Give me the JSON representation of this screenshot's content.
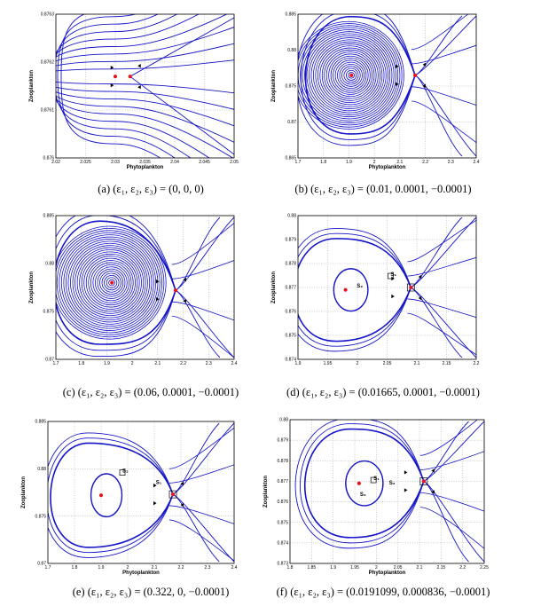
{
  "figure": {
    "panels": [
      {
        "id": "a",
        "caption": "(a) (ε₁, ε₂, ε₃) = (0, 0, 0)",
        "chart_data": {
          "type": "line",
          "title": "",
          "xlabel": "Phytoplankton",
          "ylabel": "Zooplankton",
          "xlim": [
            2.02,
            2.05
          ],
          "ylim": [
            0.876,
            0.8763
          ],
          "xticks": [
            2.02,
            2.025,
            2.03,
            2.035,
            2.04,
            2.045,
            2.05
          ],
          "xtick_labels": [
            "2.02",
            "2.025",
            "2.03",
            "2.035",
            "2.04",
            "2.045",
            "2.05"
          ],
          "yticks": [
            0.876,
            0.8761,
            0.8762,
            0.8763
          ],
          "ytick_labels": [
            "0.876",
            "0.8761",
            "0.8762",
            "0.8763"
          ],
          "grid": true,
          "equilibria": [
            {
              "x": 2.03,
              "y": 0.87617,
              "color": "#e8141d"
            }
          ],
          "saddle": {
            "x": 2.0325,
            "y": 0.87617
          },
          "series_color": "#1414c8",
          "labels": []
        }
      },
      {
        "id": "b",
        "caption": "(b) (ε₁, ε₂, ε₃) = (0.01, 0.0001, −0.0001)",
        "chart_data": {
          "type": "line",
          "title": "",
          "xlabel": "Phytoplankton",
          "ylabel": "Zooplankton",
          "xlim": [
            1.7,
            2.4
          ],
          "ylim": [
            0.865,
            0.885
          ],
          "xticks": [
            1.7,
            1.8,
            1.9,
            2.0,
            2.1,
            2.2,
            2.3,
            2.4
          ],
          "xtick_labels": [
            "1.7",
            "1.8",
            "1.9",
            "2",
            "2.1",
            "2.2",
            "2.3",
            "2.4"
          ],
          "yticks": [
            0.865,
            0.87,
            0.875,
            0.88,
            0.885
          ],
          "ytick_labels": [
            "0.865",
            "0.87",
            "0.875",
            "0.88",
            "0.885"
          ],
          "grid": true,
          "equilibria": [
            {
              "x": 1.91,
              "y": 0.8765,
              "color": "#e8141d"
            }
          ],
          "saddle": {
            "x": 2.16,
            "y": 0.8765
          },
          "series_color": "#1414c8",
          "labels": []
        }
      },
      {
        "id": "c",
        "caption": "(c) (ε₁, ε₂, ε₃) = (0.06, 0.0001, −0.0001)",
        "chart_data": {
          "type": "line",
          "title": "",
          "xlabel": "",
          "ylabel": "Zooplankton",
          "xlim": [
            1.7,
            2.4
          ],
          "ylim": [
            0.87,
            0.885
          ],
          "xticks": [
            1.7,
            1.8,
            1.9,
            2.0,
            2.1,
            2.2,
            2.3,
            2.4
          ],
          "xtick_labels": [
            "1.7",
            "1.8",
            "1.9",
            "2",
            "2.1",
            "2.2",
            "2.3",
            "2.4"
          ],
          "yticks": [
            0.87,
            0.875,
            0.88,
            0.885
          ],
          "ytick_labels": [
            "0.87",
            "0.875",
            "0.88",
            "0.885"
          ],
          "grid": true,
          "equilibria": [
            {
              "x": 1.92,
              "y": 0.878,
              "color": "#e8141d"
            }
          ],
          "saddle": {
            "x": 2.17,
            "y": 0.8772
          },
          "series_color": "#1414c8",
          "labels": []
        }
      },
      {
        "id": "d",
        "caption": "(d) (ε₁, ε₂, ε₃) = (0.01665, 0.0001, −0.0001)",
        "chart_data": {
          "type": "line",
          "title": "",
          "xlabel": "",
          "ylabel": "Zooplankton",
          "xlim": [
            1.9,
            2.2
          ],
          "ylim": [
            0.874,
            0.88
          ],
          "xticks": [
            1.9,
            1.95,
            2.0,
            2.05,
            2.1,
            2.15,
            2.2
          ],
          "xtick_labels": [
            "1.9",
            "1.95",
            "2",
            "2.05",
            "2.1",
            "2.15",
            "2.2"
          ],
          "yticks": [
            0.874,
            0.875,
            0.876,
            0.877,
            0.878,
            0.879,
            0.88
          ],
          "ytick_labels": [
            "0.874",
            "0.875",
            "0.876",
            "0.877",
            "0.878",
            "0.879",
            "0.88"
          ],
          "grid": true,
          "equilibria": [
            {
              "x": 1.98,
              "y": 0.8769,
              "color": "#e8141d"
            }
          ],
          "saddle": {
            "x": 2.09,
            "y": 0.877
          },
          "series_color": "#1414c8",
          "labels": [
            "S₂",
            "S₁"
          ]
        }
      },
      {
        "id": "e",
        "caption": "(e) (ε₁, ε₂, ε₃) = (0.322, 0, −0.0001)",
        "chart_data": {
          "type": "line",
          "title": "",
          "xlabel": "Phytoplankton",
          "ylabel": "Zooplankton",
          "xlim": [
            1.7,
            2.4
          ],
          "ylim": [
            0.87,
            0.885
          ],
          "xticks": [
            1.7,
            1.8,
            1.9,
            2.0,
            2.1,
            2.2,
            2.3,
            2.4
          ],
          "xtick_labels": [
            "1.7",
            "1.8",
            "1.9",
            "2",
            "2.1",
            "2.2",
            "2.3",
            "2.4"
          ],
          "yticks": [
            0.87,
            0.875,
            0.88,
            0.885
          ],
          "ytick_labels": [
            "0.87",
            "0.875",
            "0.88",
            "0.885"
          ],
          "grid": true,
          "equilibria": [
            {
              "x": 1.9,
              "y": 0.8772,
              "color": "#e8141d"
            }
          ],
          "saddle": {
            "x": 2.17,
            "y": 0.8773
          },
          "series_color": "#1414c8",
          "labels": [
            "S₁",
            "S₂"
          ]
        }
      },
      {
        "id": "f",
        "caption": "(f) (ε₁, ε₂, ε₃) = (0.0191099, 0.000836, −0.0001)",
        "chart_data": {
          "type": "line",
          "title": "",
          "xlabel": "Phytoplankton",
          "ylabel": "Zooplankton",
          "xlim": [
            1.8,
            2.25
          ],
          "ylim": [
            0.873,
            0.88
          ],
          "xticks": [
            1.8,
            1.85,
            1.9,
            1.95,
            2.0,
            2.05,
            2.1,
            2.15,
            2.2,
            2.25
          ],
          "xtick_labels": [
            "1.8",
            "1.85",
            "1.9",
            "1.95",
            "2",
            "2.05",
            "2.1",
            "2.15",
            "2.2",
            "2.25"
          ],
          "yticks": [
            0.873,
            0.874,
            0.875,
            0.876,
            0.877,
            0.878,
            0.879,
            0.88
          ],
          "ytick_labels": [
            "0.873",
            "0.874",
            "0.875",
            "0.876",
            "0.877",
            "0.878",
            "0.879",
            "0.88"
          ],
          "grid": true,
          "equilibria": [
            {
              "x": 1.96,
              "y": 0.8769,
              "color": "#e8141d"
            }
          ],
          "saddle": {
            "x": 2.11,
            "y": 0.877
          },
          "series_color": "#1414c8",
          "labels": [
            "S₃",
            "S₂",
            "S₁"
          ]
        }
      }
    ]
  }
}
